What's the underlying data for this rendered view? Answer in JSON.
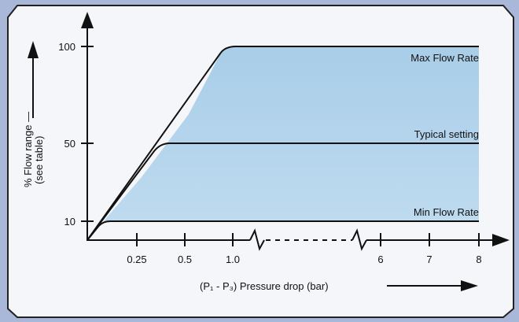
{
  "chart_data": {
    "type": "area",
    "title": "",
    "ylabel": "% Flow range —",
    "ylabel_sub": "(see table)",
    "xlabel": "(P₁ - P₃) Pressure drop (bar)",
    "y_ticks": [
      "100",
      "50",
      "10"
    ],
    "x_ticks_left": [
      "0.25",
      "0.5",
      "1.0"
    ],
    "x_ticks_right": [
      "6",
      "7",
      "8"
    ],
    "x_axis_break": true,
    "series": [
      {
        "name": "Max Flow Rate",
        "plateau": 100,
        "x": [
          0,
          0.25,
          0.5,
          0.8,
          1.0,
          8
        ],
        "y": [
          0,
          27,
          53,
          85,
          100,
          100
        ]
      },
      {
        "name": "Typical setting",
        "plateau": 50,
        "x": [
          0,
          0.125,
          0.25,
          0.33,
          0.5,
          8
        ],
        "y": [
          0,
          20,
          40,
          50,
          50,
          50
        ]
      },
      {
        "name": "Min Flow Rate",
        "plateau": 10,
        "x": [
          0,
          0.06,
          0.1,
          0.15,
          0.25,
          8
        ],
        "y": [
          0,
          6,
          9,
          10,
          10,
          10
        ]
      }
    ],
    "fill_region": "between Min Flow Rate and Max Flow Rate",
    "colors": {
      "fill": "#b2d3ea",
      "line": "#111111",
      "panel": "#f5f6fa",
      "border": "#222222",
      "background": "#a9b8d8"
    }
  }
}
